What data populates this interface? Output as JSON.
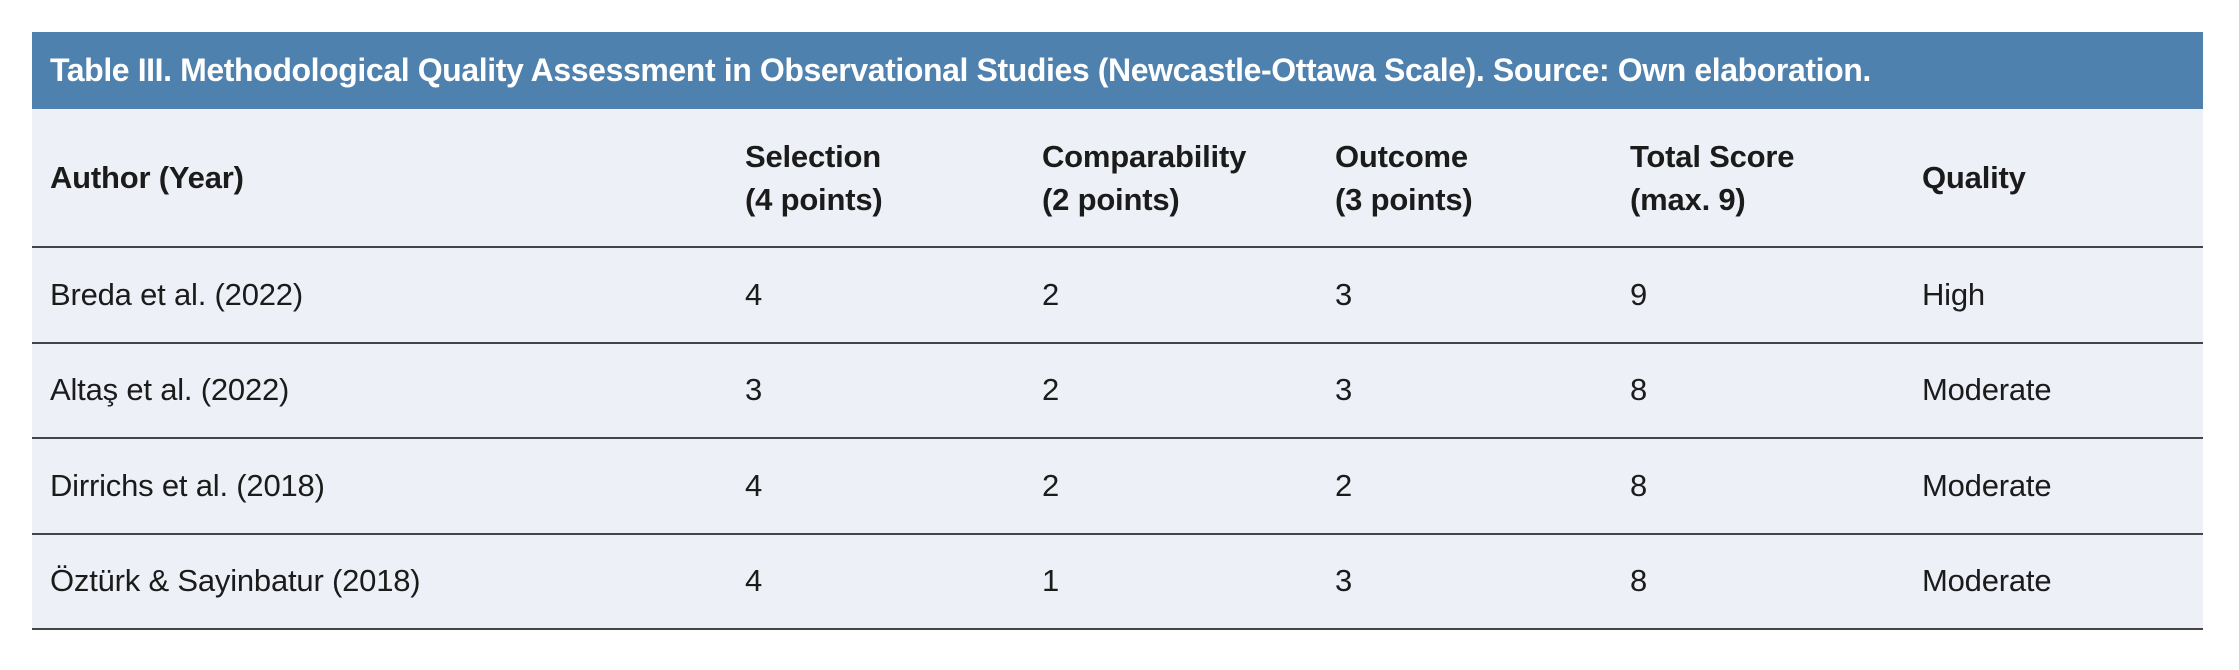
{
  "table": {
    "title": "Table III. Methodological Quality Assessment in Observational Studies (Newcastle-Ottawa Scale). Source: Own elaboration.",
    "columns": [
      {
        "line1": "Author (Year)",
        "line2": ""
      },
      {
        "line1": "Selection",
        "line2": "(4 points)"
      },
      {
        "line1": "Comparability",
        "line2": "(2 points)"
      },
      {
        "line1": "Outcome",
        "line2": "(3 points)"
      },
      {
        "line1": "Total Score",
        "line2": "(max. 9)"
      },
      {
        "line1": "Quality",
        "line2": ""
      }
    ],
    "rows": [
      {
        "author": "Breda et al. (2022)",
        "selection": "4",
        "comparability": "2",
        "outcome": "3",
        "total": "9",
        "quality": "High"
      },
      {
        "author": "Altaş et al. (2022)",
        "selection": "3",
        "comparability": "2",
        "outcome": "3",
        "total": "8",
        "quality": "Moderate"
      },
      {
        "author": "Dirrichs et al. (2018)",
        "selection": "4",
        "comparability": "2",
        "outcome": "2",
        "total": "8",
        "quality": "Moderate"
      },
      {
        "author": "Öztürk & Sayinbatur (2018)",
        "selection": "4",
        "comparability": "1",
        "outcome": "3",
        "total": "8",
        "quality": "Moderate"
      }
    ],
    "colors": {
      "header_bg": "#4e81ae",
      "row_bg": "#edf0f6",
      "separator": "#454545",
      "title_text": "#ffffff",
      "body_text": "#1b1b1b"
    }
  }
}
